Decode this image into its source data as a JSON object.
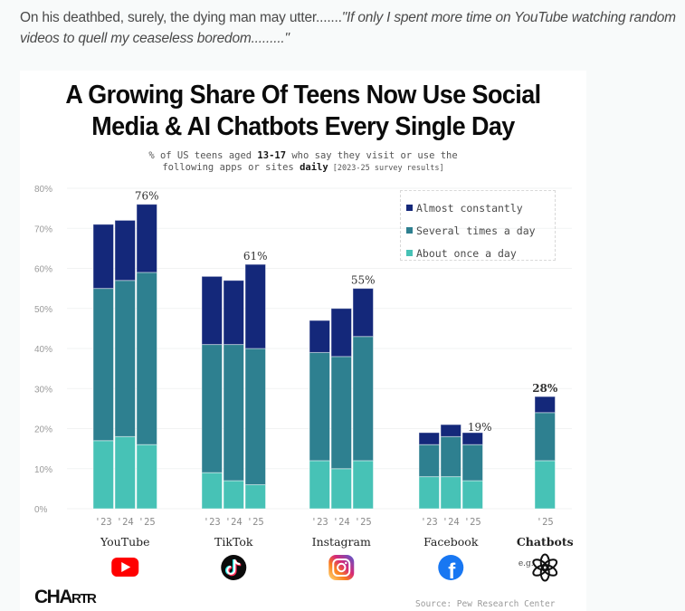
{
  "post": {
    "caption_plain": "On his deathbed, surely, the dying man may utter.......",
    "caption_quote": "\"If only I spent more time on YouTube watching random videos to quell my ceaseless boredom.........\""
  },
  "colors": {
    "almost_constantly": "#14287a",
    "several_times": "#2e8090",
    "once_a_day": "#47c2b6",
    "axis_text": "#9a9a9a"
  },
  "chart_data": {
    "type": "bar",
    "stacked": true,
    "title": "A Growing Share Of Teens Now Use Social Media & AI Chatbots Every Single Day",
    "title_line1": "A Growing Share Of Teens Now Use Social",
    "title_line2": "Media & AI Chatbots Every Single Day",
    "subtitle_pre": "% of US teens aged ",
    "subtitle_bold1": "13-17",
    "subtitle_mid": " who say they visit or use the",
    "subtitle_line2_pre": "following apps or sites ",
    "subtitle_bold2": "daily",
    "subtitle_small": " [2023-25 survey results]",
    "ylim": [
      0,
      80
    ],
    "yticks": [
      "0%",
      "10%",
      "20%",
      "30%",
      "40%",
      "50%",
      "60%",
      "70%",
      "80%"
    ],
    "ytick_values": [
      0,
      10,
      20,
      30,
      40,
      50,
      60,
      70,
      80
    ],
    "grid": true,
    "legend_position": "top-right",
    "legend": [
      "Almost constantly",
      "Several times a day",
      "About once a day"
    ],
    "groups": [
      {
        "name": "YouTube",
        "icon": "youtube-icon",
        "years": [
          "'23",
          "'24",
          "'25"
        ],
        "once_a_day": [
          17,
          18,
          16
        ],
        "several_times": [
          38,
          39,
          43
        ],
        "almost_constantly": [
          16,
          15,
          17
        ],
        "label": "76%"
      },
      {
        "name": "TikTok",
        "icon": "tiktok-icon",
        "years": [
          "'23",
          "'24",
          "'25"
        ],
        "once_a_day": [
          9,
          7,
          6
        ],
        "several_times": [
          32,
          34,
          34
        ],
        "almost_constantly": [
          17,
          16,
          21
        ],
        "label": "61%"
      },
      {
        "name": "Instagram",
        "icon": "instagram-icon",
        "years": [
          "'23",
          "'24",
          "'25"
        ],
        "once_a_day": [
          12,
          10,
          12
        ],
        "several_times": [
          27,
          28,
          31
        ],
        "almost_constantly": [
          8,
          12,
          12
        ],
        "label": "55%"
      },
      {
        "name": "Facebook",
        "icon": "facebook-icon",
        "years": [
          "'23",
          "'24",
          "'25"
        ],
        "once_a_day": [
          8,
          8,
          7
        ],
        "several_times": [
          8,
          10,
          9
        ],
        "almost_constantly": [
          3,
          3,
          3
        ],
        "label": "19%"
      },
      {
        "name": "Chatbots",
        "icon": "openai-icon",
        "prefix": "e.g.",
        "years": [
          "'25"
        ],
        "once_a_day": [
          12
        ],
        "several_times": [
          12
        ],
        "almost_constantly": [
          4
        ],
        "label": "28%"
      }
    ],
    "source": "Source: Pew Research Center",
    "brand_big": "CHA",
    "brand_small": "RTR"
  }
}
